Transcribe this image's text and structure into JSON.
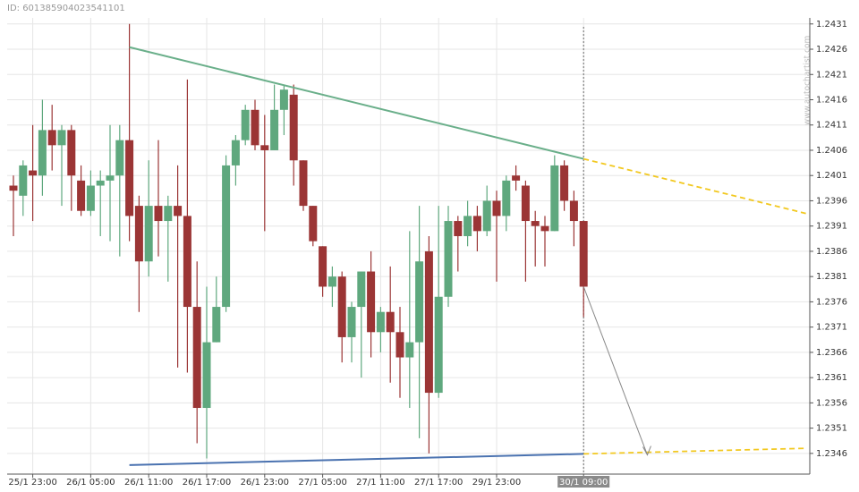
{
  "id_label": "ID: 601385904023541101",
  "watermark": "www.autochartist.com",
  "chart_data": {
    "type": "candlestick",
    "categories": [
      null,
      null,
      "25/1 23:00",
      null,
      null,
      null,
      null,
      null,
      "26/1 05:00",
      null,
      null,
      null,
      null,
      null,
      "26/1 11:00",
      null,
      null,
      null,
      null,
      null,
      "26/1 17:00",
      null,
      null,
      null,
      null,
      null,
      "26/1 23:00",
      null,
      null,
      null,
      null,
      null,
      "27/1 05:00",
      null,
      null,
      null,
      null,
      null,
      "27/1 11:00",
      null,
      null,
      null,
      null,
      null,
      "27/1 17:00",
      null,
      null,
      null,
      null,
      null,
      "29/1 23:00",
      null,
      null,
      null,
      null,
      null,
      null,
      null,
      null,
      "30/1 09:00"
    ],
    "open": [
      1.2399,
      1.2397,
      1.2402,
      1.2401,
      1.241,
      1.2407,
      1.241,
      1.24,
      1.2394,
      1.2399,
      1.24,
      1.2401,
      1.2408,
      1.2395,
      1.2384,
      1.2395,
      1.2392,
      1.2395,
      1.2393,
      1.2375,
      1.2355,
      1.2368,
      1.2375,
      1.2403,
      1.2408,
      1.2414,
      1.2407,
      1.2406,
      1.2414,
      1.2417,
      1.2404,
      1.2395,
      1.2387,
      1.2379,
      1.2381,
      1.2369,
      1.2375,
      1.2382,
      1.237,
      1.2374,
      1.237,
      1.2365,
      1.2368,
      1.2386,
      1.2358,
      1.2377,
      1.2392,
      1.2389,
      1.2393,
      1.239,
      1.2396,
      1.2393,
      1.2401,
      1.2399,
      1.2392,
      1.2391,
      1.239,
      1.2403,
      1.2396,
      1.2392
    ],
    "high": [
      1.2401,
      1.2404,
      1.2411,
      1.2416,
      1.2415,
      1.2411,
      1.2411,
      1.2403,
      1.2402,
      1.2402,
      1.2411,
      1.2411,
      1.2431,
      1.2397,
      1.2404,
      1.2408,
      1.2397,
      1.2403,
      1.242,
      1.2384,
      1.2379,
      1.2381,
      1.2405,
      1.2409,
      1.2415,
      1.2416,
      1.2413,
      1.2419,
      1.2419,
      1.2419,
      1.2404,
      1.2395,
      1.2387,
      1.2383,
      1.2382,
      1.2376,
      1.2382,
      1.2386,
      1.2375,
      1.2383,
      1.2375,
      1.239,
      1.2395,
      1.2389,
      1.2395,
      1.2395,
      1.2393,
      1.2396,
      1.2395,
      1.2399,
      1.2398,
      1.2401,
      1.2403,
      1.24,
      1.2394,
      1.2393,
      1.2405,
      1.2404,
      1.2398,
      1.2392
    ],
    "low": [
      1.2389,
      1.2393,
      1.2392,
      1.2397,
      1.2402,
      1.2395,
      1.2394,
      1.2393,
      1.2393,
      1.2389,
      1.2388,
      1.2385,
      1.2388,
      1.2374,
      1.2381,
      1.2385,
      1.238,
      1.2363,
      1.2362,
      1.2348,
      1.2345,
      1.2368,
      1.2374,
      1.2399,
      1.2407,
      1.2406,
      1.239,
      1.2406,
      1.2409,
      1.2399,
      1.2394,
      1.2387,
      1.2377,
      1.2375,
      1.2364,
      1.2364,
      1.2361,
      1.2365,
      1.2366,
      1.236,
      1.2357,
      1.2355,
      1.2349,
      1.2346,
      1.2357,
      1.2375,
      1.2382,
      1.2387,
      1.2386,
      1.2389,
      1.238,
      1.239,
      1.2398,
      1.238,
      1.2383,
      1.2383,
      1.239,
      1.2394,
      1.2387,
      1.2373
    ],
    "close": [
      1.2398,
      1.2403,
      1.2401,
      1.241,
      1.2407,
      1.241,
      1.2401,
      1.2394,
      1.2399,
      1.24,
      1.2401,
      1.2408,
      1.2393,
      1.2384,
      1.2395,
      1.2392,
      1.2395,
      1.2393,
      1.2375,
      1.2355,
      1.2368,
      1.2375,
      1.2403,
      1.2408,
      1.2414,
      1.2407,
      1.2406,
      1.2414,
      1.2418,
      1.2404,
      1.2395,
      1.2388,
      1.2379,
      1.2381,
      1.2369,
      1.2375,
      1.2382,
      1.237,
      1.2374,
      1.237,
      1.2365,
      1.2368,
      1.2384,
      1.2358,
      1.2377,
      1.2392,
      1.2389,
      1.2393,
      1.239,
      1.2396,
      1.2393,
      1.24,
      1.24,
      1.2392,
      1.2391,
      1.239,
      1.2403,
      1.2396,
      1.2392,
      1.2379
    ],
    "up_color": "#5fa87e",
    "down_color": "#9b3535",
    "trendlines": [
      {
        "color": "#6aaf8a",
        "dash": false,
        "x": [
          12,
          59
        ],
        "values": [
          1.24264,
          1.24043
        ]
      },
      {
        "color": "#f2c81f",
        "dash": true,
        "x": [
          59,
          82
        ],
        "values": [
          1.24043,
          1.23935
        ]
      },
      {
        "color": "#4a72b0",
        "dash": false,
        "x": [
          12,
          59
        ],
        "values": [
          1.23437,
          1.23459
        ]
      },
      {
        "color": "#f2c81f",
        "dash": true,
        "x": [
          59,
          82
        ],
        "values": [
          1.23459,
          1.2347
        ]
      },
      {
        "color": "#888888",
        "dash": false,
        "x": [
          59,
          65.6
        ],
        "values": [
          1.2379,
          1.23457
        ]
      }
    ],
    "ylim": [
      1.23419,
      1.24322
    ],
    "yticks": [
      1.2346,
      1.2351,
      1.2356,
      1.2361,
      1.2366,
      1.2371,
      1.2376,
      1.2381,
      1.2386,
      1.2391,
      1.2396,
      1.2401,
      1.2406,
      1.2411,
      1.2416,
      1.2421,
      1.2426,
      1.2431
    ],
    "grid": true
  }
}
